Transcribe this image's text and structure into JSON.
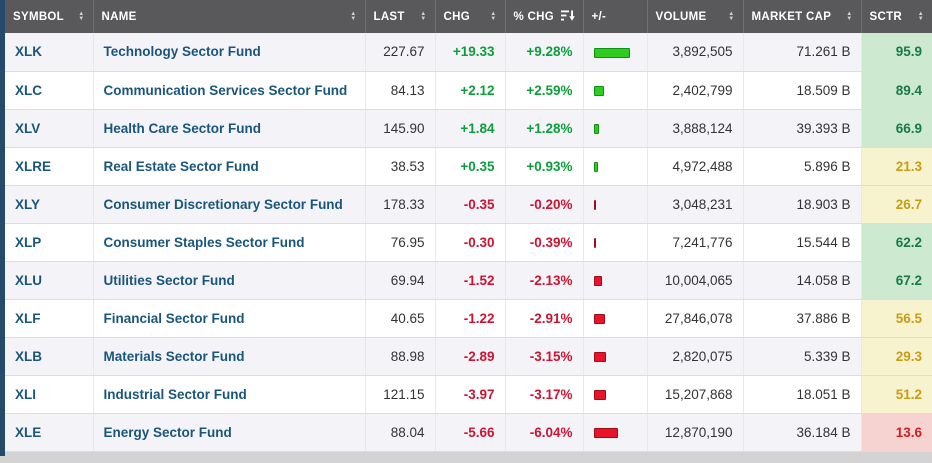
{
  "page": {
    "background": "#d3d3d3",
    "left_strip_color": "#264a6b",
    "header_bg": "#59595b"
  },
  "table": {
    "columns": [
      {
        "key": "symbol",
        "label": "SYMBOL",
        "sort": "both"
      },
      {
        "key": "name",
        "label": "NAME",
        "sort": "both"
      },
      {
        "key": "last",
        "label": "LAST",
        "sort": "both"
      },
      {
        "key": "chg",
        "label": "CHG",
        "sort": "both"
      },
      {
        "key": "pctchg",
        "label": "% CHG",
        "sort": "desc"
      },
      {
        "key": "bar",
        "label": "+/-",
        "sort": "none"
      },
      {
        "key": "volume",
        "label": "VOLUME",
        "sort": "both"
      },
      {
        "key": "marketcap",
        "label": "MARKET CAP",
        "sort": "both"
      },
      {
        "key": "sctr",
        "label": "SCTR",
        "sort": "both"
      }
    ],
    "rows": [
      {
        "symbol": "XLK",
        "name": "Technology Sector Fund",
        "last": "227.67",
        "chg": "+19.33",
        "pct_chg": "+9.28%",
        "volume": "3,892,505",
        "market_cap": "71.261 B",
        "sctr": "95.9",
        "sctr_band": "green"
      },
      {
        "symbol": "XLC",
        "name": "Communication Services Sector Fund",
        "last": "84.13",
        "chg": "+2.12",
        "pct_chg": "+2.59%",
        "volume": "2,402,799",
        "market_cap": "18.509 B",
        "sctr": "89.4",
        "sctr_band": "green"
      },
      {
        "symbol": "XLV",
        "name": "Health Care Sector Fund",
        "last": "145.90",
        "chg": "+1.84",
        "pct_chg": "+1.28%",
        "volume": "3,888,124",
        "market_cap": "39.393 B",
        "sctr": "66.9",
        "sctr_band": "green"
      },
      {
        "symbol": "XLRE",
        "name": "Real Estate Sector Fund",
        "last": "38.53",
        "chg": "+0.35",
        "pct_chg": "+0.93%",
        "volume": "4,972,488",
        "market_cap": "5.896 B",
        "sctr": "21.3",
        "sctr_band": "yellow"
      },
      {
        "symbol": "XLY",
        "name": "Consumer Discretionary Sector Fund",
        "last": "178.33",
        "chg": "-0.35",
        "pct_chg": "-0.20%",
        "volume": "3,048,231",
        "market_cap": "18.903 B",
        "sctr": "26.7",
        "sctr_band": "yellow"
      },
      {
        "symbol": "XLP",
        "name": "Consumer Staples Sector Fund",
        "last": "76.95",
        "chg": "-0.30",
        "pct_chg": "-0.39%",
        "volume": "7,241,776",
        "market_cap": "15.544 B",
        "sctr": "62.2",
        "sctr_band": "green"
      },
      {
        "symbol": "XLU",
        "name": "Utilities Sector Fund",
        "last": "69.94",
        "chg": "-1.52",
        "pct_chg": "-2.13%",
        "volume": "10,004,065",
        "market_cap": "14.058 B",
        "sctr": "67.2",
        "sctr_band": "green"
      },
      {
        "symbol": "XLF",
        "name": "Financial Sector Fund",
        "last": "40.65",
        "chg": "-1.22",
        "pct_chg": "-2.91%",
        "volume": "27,846,078",
        "market_cap": "37.886 B",
        "sctr": "56.5",
        "sctr_band": "yellow"
      },
      {
        "symbol": "XLB",
        "name": "Materials Sector Fund",
        "last": "88.98",
        "chg": "-2.89",
        "pct_chg": "-3.15%",
        "volume": "2,820,075",
        "market_cap": "5.339 B",
        "sctr": "29.3",
        "sctr_band": "yellow"
      },
      {
        "symbol": "XLI",
        "name": "Industrial Sector Fund",
        "last": "121.15",
        "chg": "-3.97",
        "pct_chg": "-3.17%",
        "volume": "15,207,868",
        "market_cap": "18.051 B",
        "sctr": "51.2",
        "sctr_band": "yellow"
      },
      {
        "symbol": "XLE",
        "name": "Energy Sector Fund",
        "last": "88.04",
        "chg": "-5.66",
        "pct_chg": "-6.04%",
        "volume": "12,870,190",
        "market_cap": "36.184 B",
        "sctr": "13.6",
        "sctr_band": "red"
      }
    ],
    "colors": {
      "positive": "#0c9e3a",
      "negative": "#cc1433",
      "bar_up_fill": "#2ecc1e",
      "bar_up_border": "#0f9213",
      "bar_down_fill": "#e8142a",
      "bar_down_border": "#a30b18",
      "sctr_green_bg": "#cde9d0",
      "sctr_green_text": "#18794a",
      "sctr_yellow_bg": "#f8f3cf",
      "sctr_yellow_text": "#c79d17",
      "sctr_red_bg": "#f6d3d1",
      "sctr_red_text": "#cc2222"
    }
  }
}
